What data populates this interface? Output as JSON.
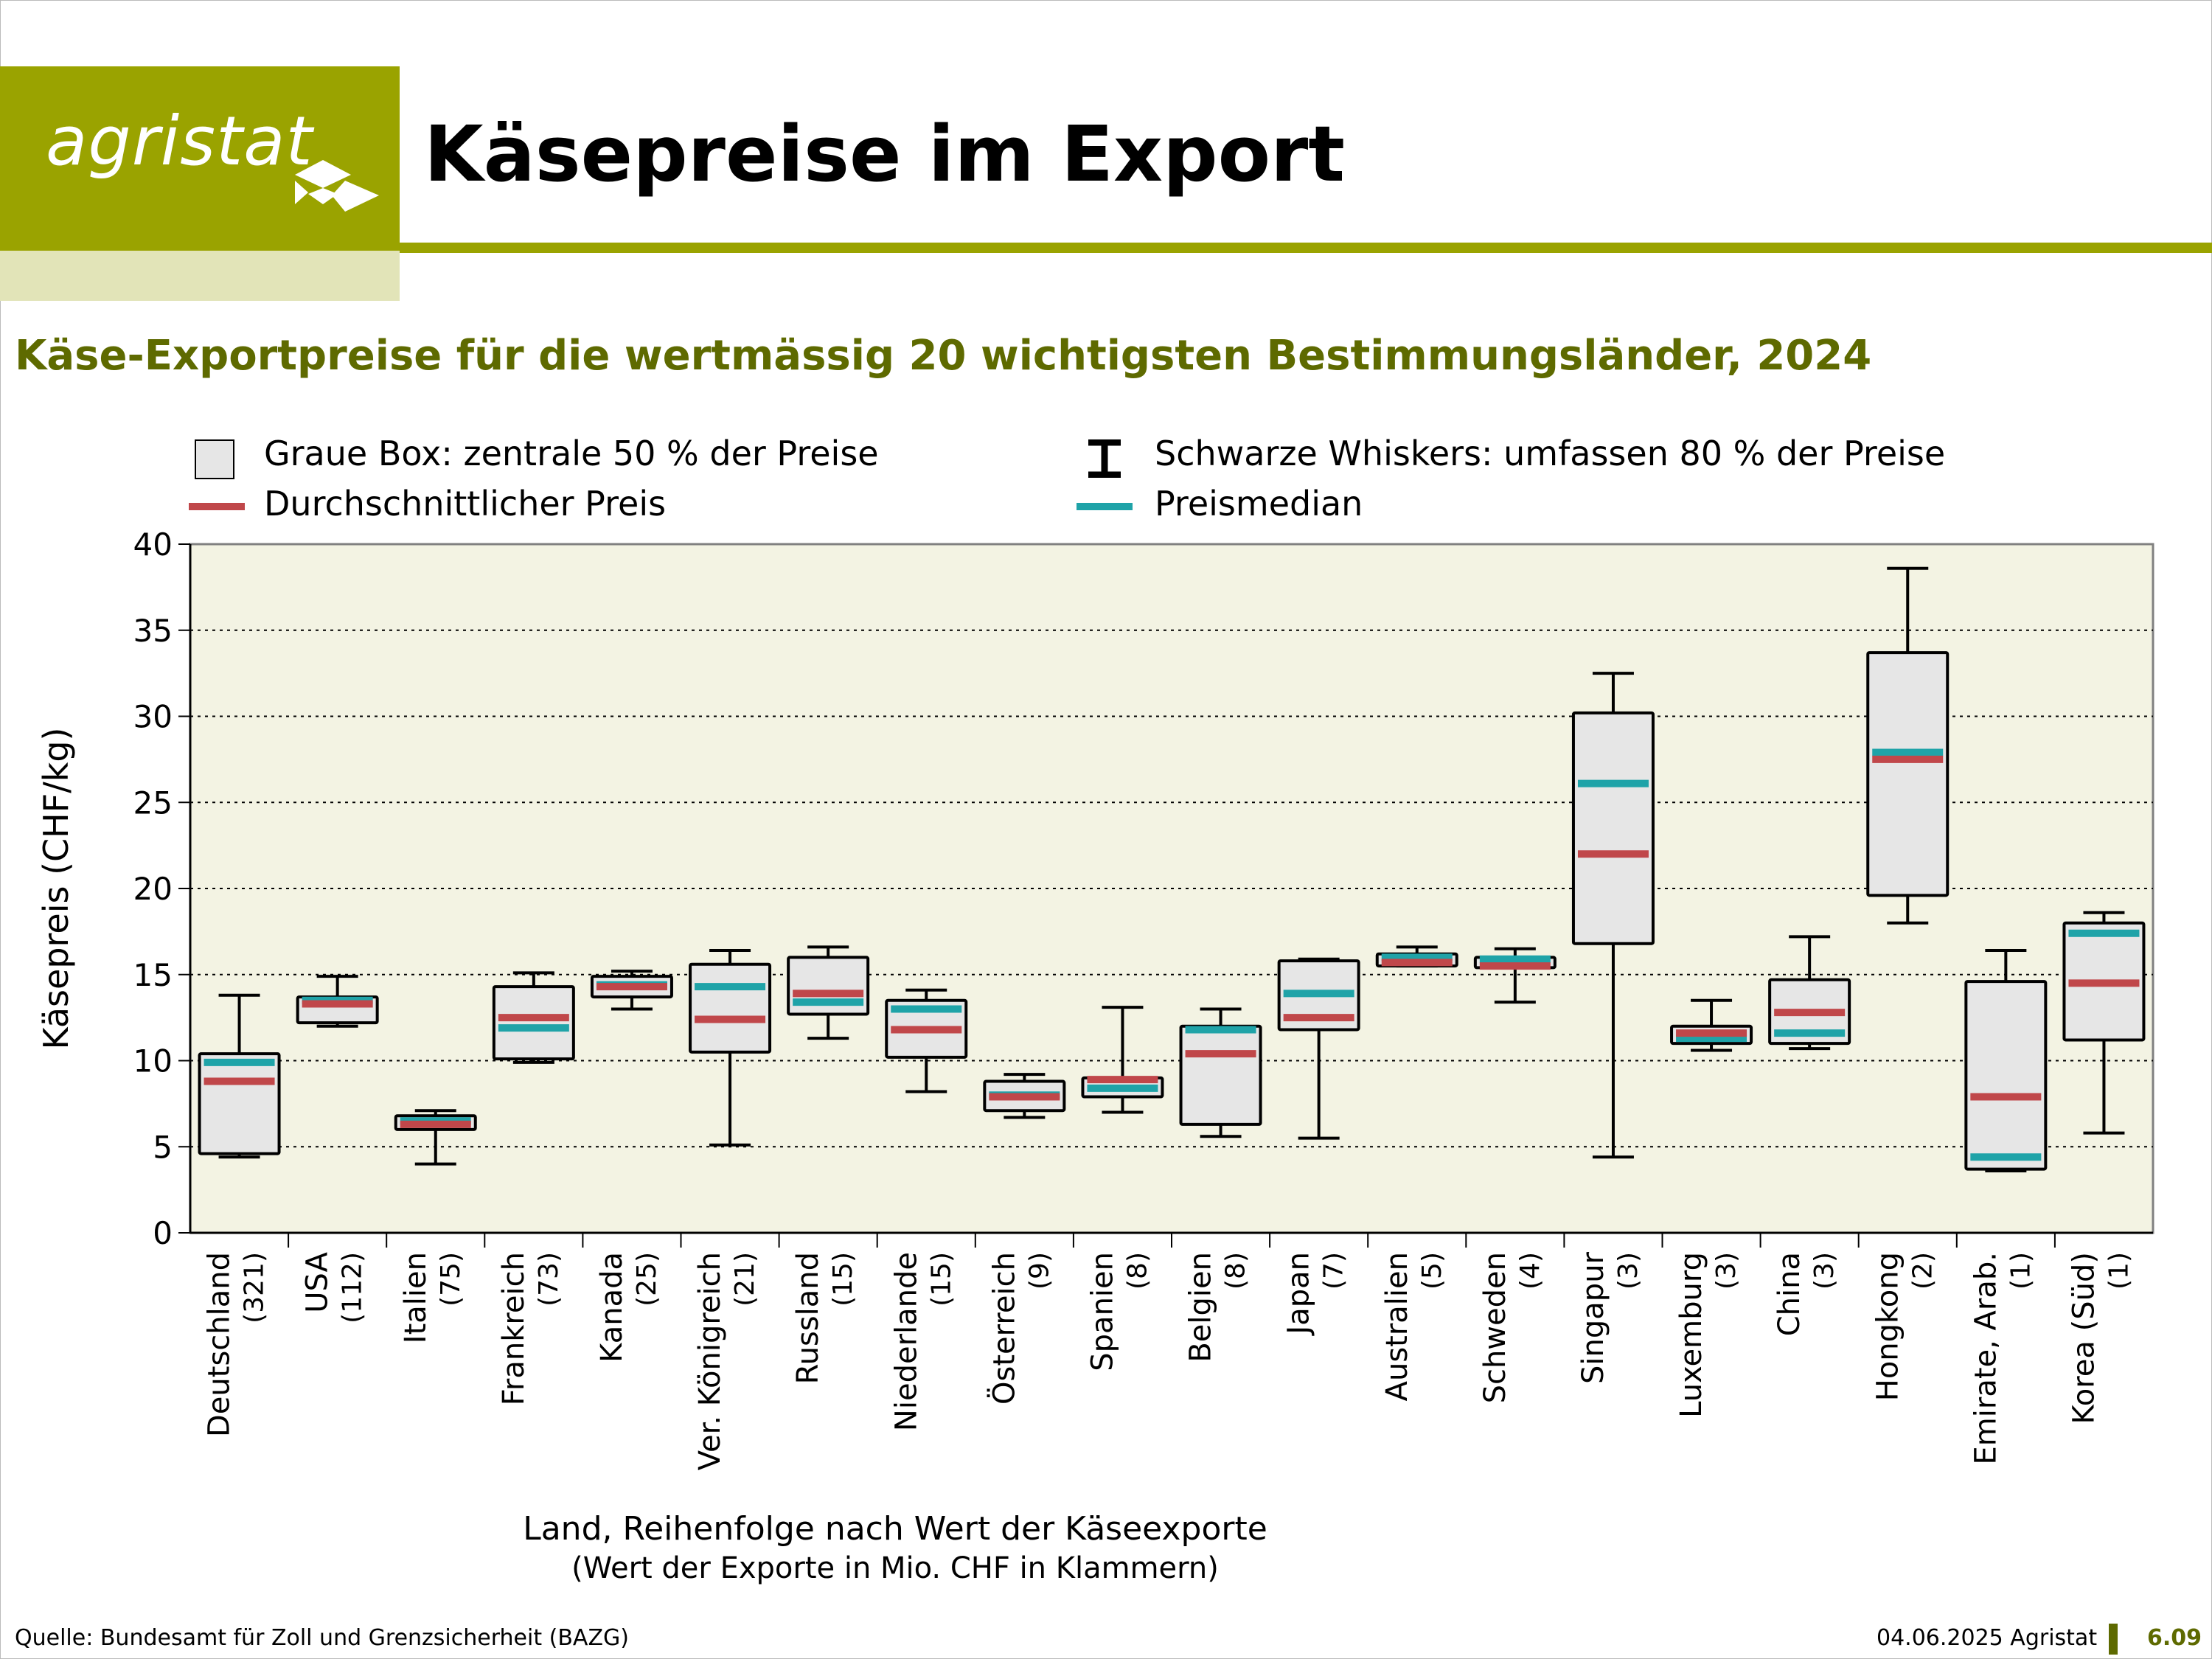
{
  "header": {
    "logo_text": "agristat",
    "title": "Käsepreise im Export"
  },
  "subtitle": "Käse-Exportpreise für die wertmässig 20 wichtigsten Bestimmungsländer, 2024",
  "legend": {
    "box": "Graue Box: zentrale 50 % der Preise",
    "whiskers": "Schwarze Whiskers: umfassen 80 % der Preise",
    "mean": "Durchschnittlicher Preis",
    "median": "Preismedian"
  },
  "colors": {
    "brand": "#9aa300",
    "brand_dark": "#5e6a00",
    "plot_bg": "#f3f3e3",
    "box_fill": "#e6e6e6",
    "mean": "#c0474a",
    "median": "#1fa3a8"
  },
  "chart_data": {
    "type": "box",
    "ylabel": "Käsepreis (CHF/kg)",
    "xlabel": "Land, Reihenfolge nach Wert der Käseexporte",
    "xlabel_note": "(Wert der Exporte in Mio. CHF in Klammern)",
    "ylim": [
      0,
      40
    ],
    "yticks": [
      "0",
      "5",
      "10",
      "15",
      "20",
      "25",
      "30",
      "35",
      "40"
    ],
    "grid": "horizontal dotted",
    "categories": [
      {
        "name": "Deutschland",
        "value_label": "(321)",
        "whisker_low": 4.4,
        "q1": 4.6,
        "median": 9.9,
        "mean": 8.8,
        "q3": 10.4,
        "whisker_high": 13.8
      },
      {
        "name": "USA",
        "value_label": "(112)",
        "whisker_low": 12.0,
        "q1": 12.2,
        "median": 13.5,
        "mean": 13.3,
        "q3": 13.7,
        "whisker_high": 14.9
      },
      {
        "name": "Italien",
        "value_label": "(75)",
        "whisker_low": 4.0,
        "q1": 6.0,
        "median": 6.5,
        "mean": 6.3,
        "q3": 6.8,
        "whisker_high": 7.1
      },
      {
        "name": "Frankreich",
        "value_label": "(73)",
        "whisker_low": 9.9,
        "q1": 10.1,
        "median": 11.9,
        "mean": 12.5,
        "q3": 14.3,
        "whisker_high": 15.1
      },
      {
        "name": "Kanada",
        "value_label": "(25)",
        "whisker_low": 13.0,
        "q1": 13.7,
        "median": 14.4,
        "mean": 14.3,
        "q3": 14.9,
        "whisker_high": 15.2
      },
      {
        "name": "Ver. Königreich",
        "value_label": "(21)",
        "whisker_low": 5.1,
        "q1": 10.5,
        "median": 14.3,
        "mean": 12.4,
        "q3": 15.6,
        "whisker_high": 16.4
      },
      {
        "name": "Russland",
        "value_label": "(15)",
        "whisker_low": 11.3,
        "q1": 12.7,
        "median": 13.4,
        "mean": 13.9,
        "q3": 16.0,
        "whisker_high": 16.6
      },
      {
        "name": "Niederlande",
        "value_label": "(15)",
        "whisker_low": 8.2,
        "q1": 10.2,
        "median": 13.0,
        "mean": 11.8,
        "q3": 13.5,
        "whisker_high": 14.1
      },
      {
        "name": "Österreich",
        "value_label": "(9)",
        "whisker_low": 6.7,
        "q1": 7.1,
        "median": 8.0,
        "mean": 7.9,
        "q3": 8.8,
        "whisker_high": 9.2
      },
      {
        "name": "Spanien",
        "value_label": "(8)",
        "whisker_low": 7.0,
        "q1": 7.9,
        "median": 8.4,
        "mean": 8.9,
        "q3": 9.0,
        "whisker_high": 13.1
      },
      {
        "name": "Belgien",
        "value_label": "(8)",
        "whisker_low": 5.6,
        "q1": 6.3,
        "median": 11.8,
        "mean": 10.4,
        "q3": 12.0,
        "whisker_high": 13.0
      },
      {
        "name": "Japan",
        "value_label": "(7)",
        "whisker_low": 5.5,
        "q1": 11.8,
        "median": 13.9,
        "mean": 12.5,
        "q3": 15.8,
        "whisker_high": 15.9
      },
      {
        "name": "Australien",
        "value_label": "(5)",
        "whisker_low": 15.5,
        "q1": 15.5,
        "median": 16.0,
        "mean": 15.7,
        "q3": 16.2,
        "whisker_high": 16.6
      },
      {
        "name": "Schweden",
        "value_label": "(4)",
        "whisker_low": 13.4,
        "q1": 15.4,
        "median": 15.9,
        "mean": 15.5,
        "q3": 16.0,
        "whisker_high": 16.5
      },
      {
        "name": "Singapur",
        "value_label": "(3)",
        "whisker_low": 4.4,
        "q1": 16.8,
        "median": 26.1,
        "mean": 22.0,
        "q3": 30.2,
        "whisker_high": 32.5
      },
      {
        "name": "Luxemburg",
        "value_label": "(3)",
        "whisker_low": 10.6,
        "q1": 11.0,
        "median": 11.3,
        "mean": 11.6,
        "q3": 12.0,
        "whisker_high": 13.5
      },
      {
        "name": "China",
        "value_label": "(3)",
        "whisker_low": 10.7,
        "q1": 11.0,
        "median": 11.6,
        "mean": 12.8,
        "q3": 14.7,
        "whisker_high": 17.2
      },
      {
        "name": "Hongkong",
        "value_label": "(2)",
        "whisker_low": 18.0,
        "q1": 19.6,
        "median": 27.9,
        "mean": 27.5,
        "q3": 33.7,
        "whisker_high": 38.6
      },
      {
        "name": "Emirate, Arab.",
        "value_label": "(1)",
        "whisker_low": 3.6,
        "q1": 3.7,
        "median": 4.4,
        "mean": 7.9,
        "q3": 14.6,
        "whisker_high": 16.4
      },
      {
        "name": "Korea (Süd)",
        "value_label": "(1)",
        "whisker_low": 5.8,
        "q1": 11.2,
        "median": 17.4,
        "mean": 14.5,
        "q3": 18.0,
        "whisker_high": 18.6
      }
    ]
  },
  "footer": {
    "source": "Quelle: Bundesamt für Zoll und Grenzsicherheit (BAZG)",
    "date": "04.06.2025 Agristat",
    "page": "6.09"
  }
}
